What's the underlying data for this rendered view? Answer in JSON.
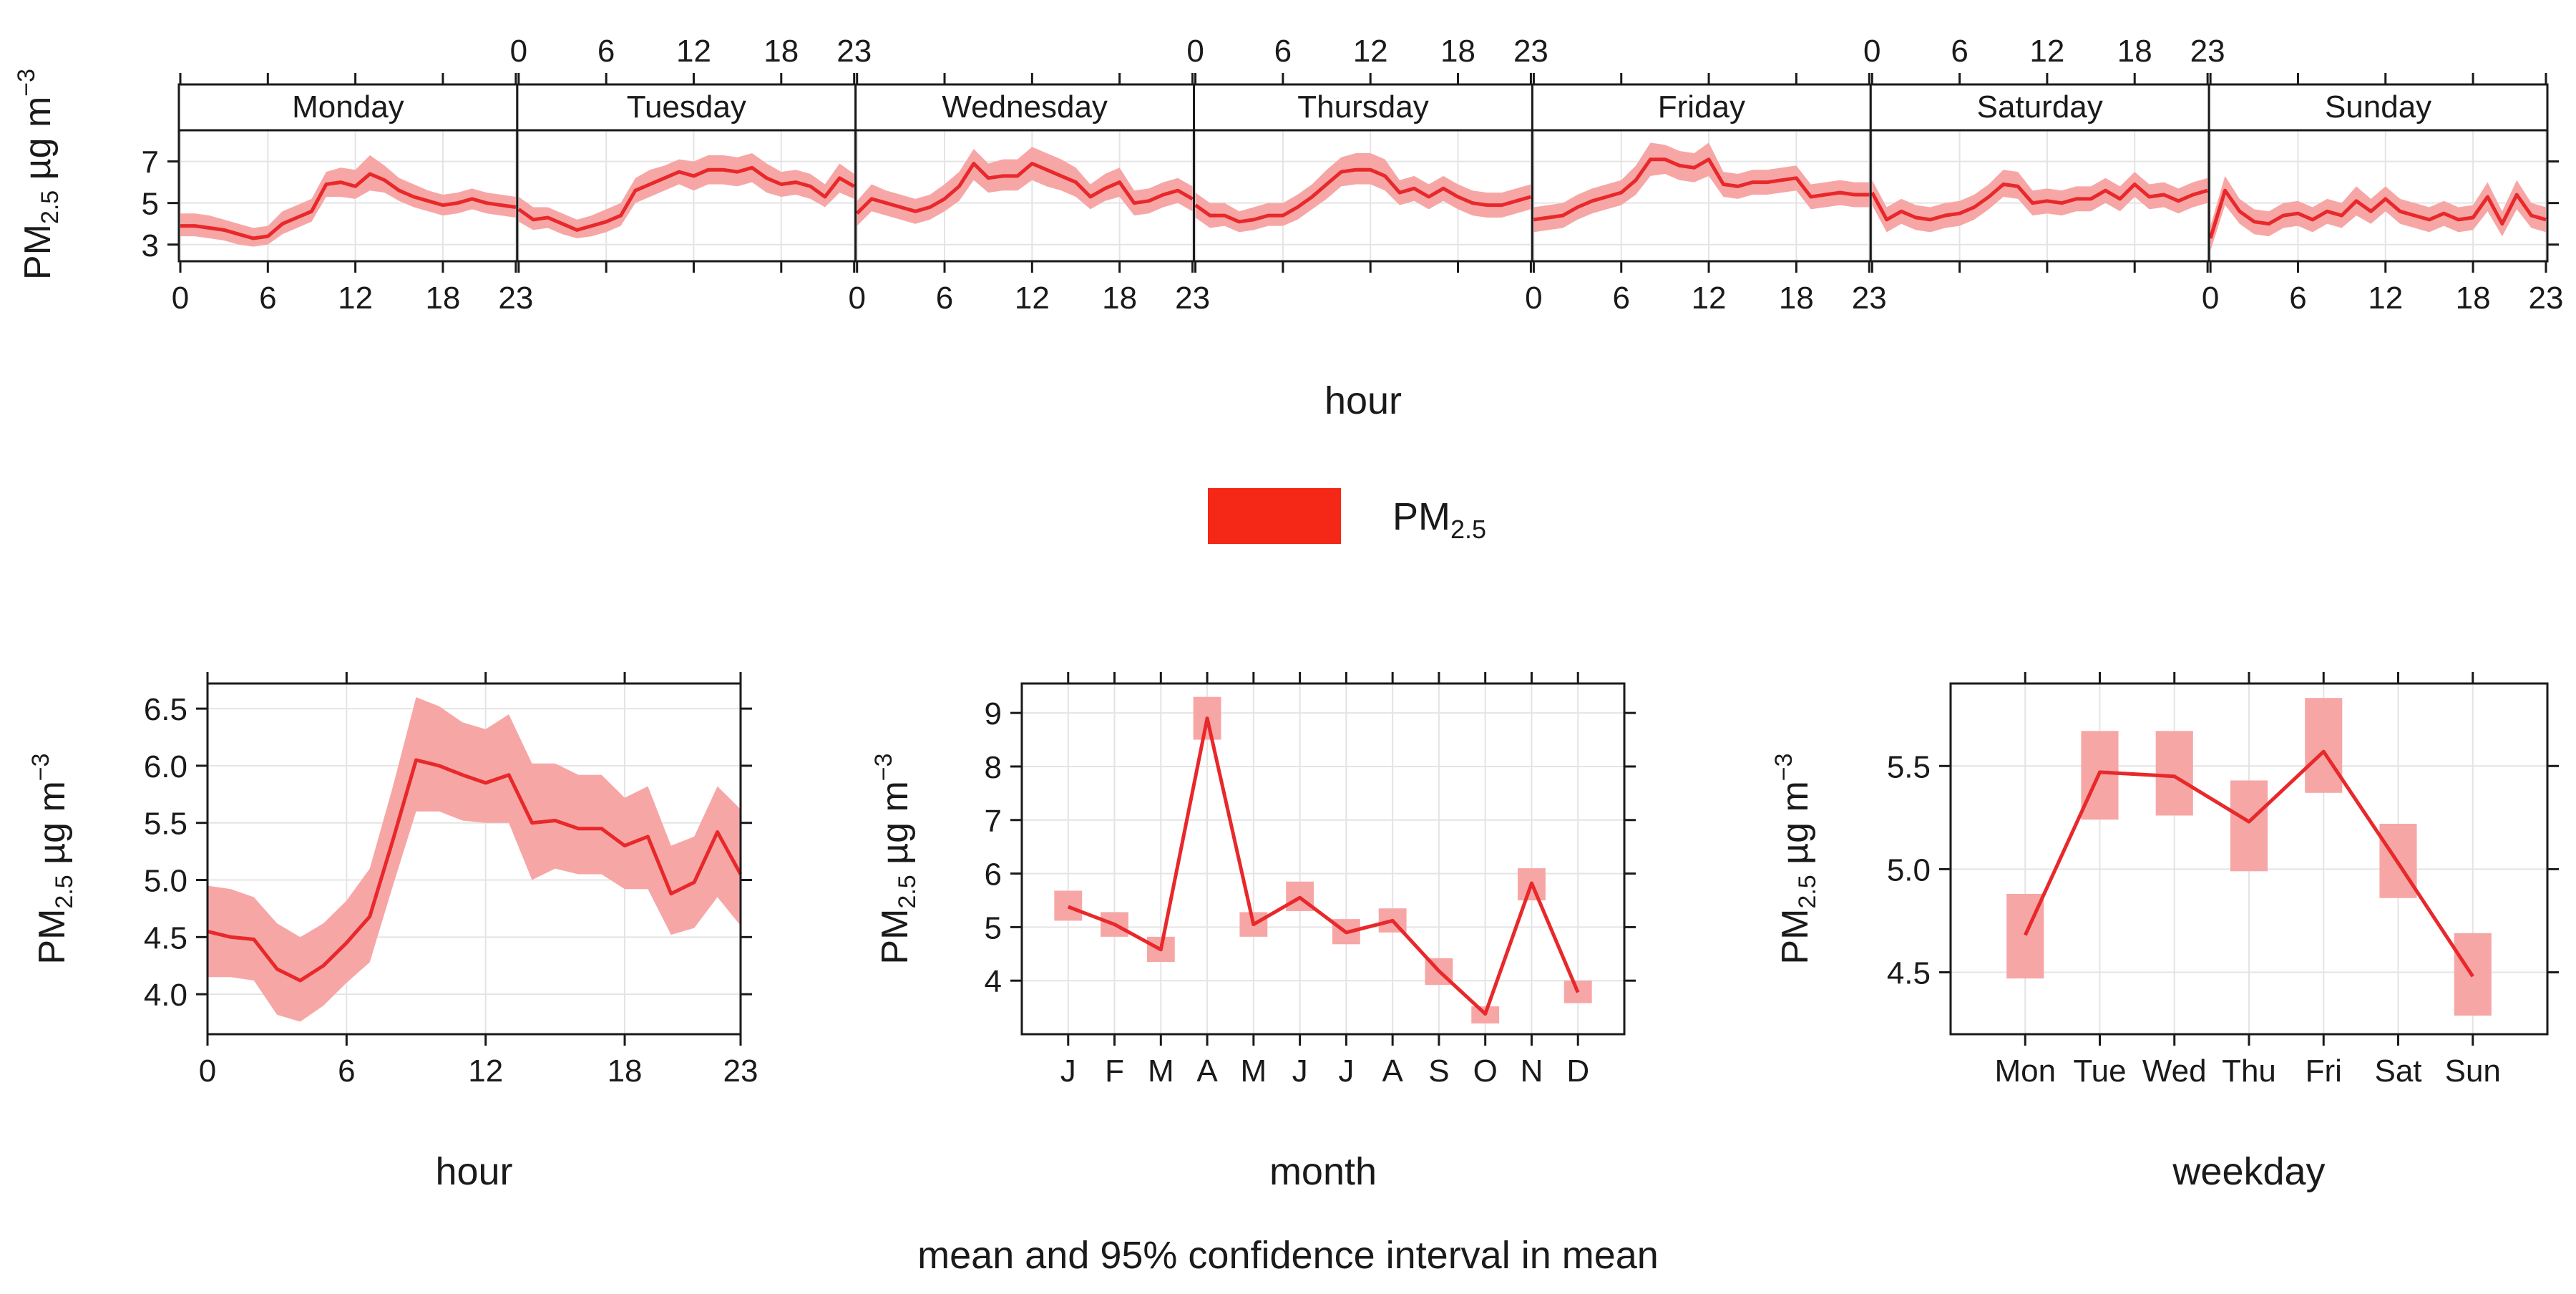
{
  "colors": {
    "line": "#e8282a",
    "band": "#f7a6a6",
    "legend_swatch": "#f52716",
    "grid": "#e4e4e4",
    "frame": "#1a1a1a",
    "strip_bg": "#ffffff"
  },
  "legend": {
    "label_main": "PM",
    "label_sub": "2.5"
  },
  "ylabel": {
    "main": "PM",
    "sub": "2.5",
    "unit": " µg m",
    "sup": "−3"
  },
  "caption": "mean and 95% confidence interval in mean",
  "chart_data": [
    {
      "id": "weekday_hour",
      "type": "line",
      "xlabel": "hour",
      "ylim": [
        2.2,
        8.5
      ],
      "yticks": [
        3,
        5,
        7
      ],
      "xtick_labels": [
        "0",
        "6",
        "12",
        "18",
        "23"
      ],
      "panels": [
        {
          "day": "Monday",
          "mean": [
            3.9,
            3.9,
            3.8,
            3.7,
            3.5,
            3.3,
            3.4,
            4.0,
            4.3,
            4.6,
            5.9,
            6.0,
            5.8,
            6.4,
            6.1,
            5.6,
            5.3,
            5.1,
            4.9,
            5.0,
            5.2,
            5.0,
            4.9,
            4.8
          ],
          "lower": [
            3.4,
            3.4,
            3.3,
            3.2,
            3.0,
            2.9,
            3.0,
            3.5,
            3.8,
            4.1,
            5.3,
            5.3,
            5.2,
            5.6,
            5.5,
            5.1,
            4.8,
            4.6,
            4.4,
            4.5,
            4.7,
            4.5,
            4.4,
            4.3
          ],
          "upper": [
            4.5,
            4.5,
            4.4,
            4.2,
            4.0,
            3.8,
            3.9,
            4.6,
            4.9,
            5.2,
            6.5,
            6.7,
            6.6,
            7.3,
            6.8,
            6.2,
            5.9,
            5.6,
            5.4,
            5.5,
            5.7,
            5.5,
            5.4,
            5.3
          ]
        },
        {
          "day": "Tuesday",
          "mean": [
            4.7,
            4.2,
            4.3,
            4.0,
            3.7,
            3.9,
            4.1,
            4.4,
            5.6,
            5.9,
            6.2,
            6.5,
            6.3,
            6.6,
            6.6,
            6.5,
            6.7,
            6.2,
            5.9,
            6.0,
            5.8,
            5.3,
            6.2,
            5.8
          ],
          "lower": [
            4.1,
            3.7,
            3.8,
            3.5,
            3.3,
            3.4,
            3.6,
            3.9,
            5.0,
            5.3,
            5.6,
            5.9,
            5.6,
            5.9,
            5.9,
            5.8,
            6.0,
            5.5,
            5.3,
            5.4,
            5.2,
            4.8,
            5.5,
            5.2
          ],
          "upper": [
            5.3,
            4.8,
            4.8,
            4.5,
            4.2,
            4.4,
            4.7,
            5.0,
            6.2,
            6.6,
            6.8,
            7.1,
            7.0,
            7.3,
            7.3,
            7.2,
            7.4,
            6.9,
            6.5,
            6.6,
            6.4,
            5.9,
            6.9,
            6.4
          ]
        },
        {
          "day": "Wednesday",
          "mean": [
            4.5,
            5.2,
            5.0,
            4.8,
            4.6,
            4.8,
            5.2,
            5.8,
            6.9,
            6.2,
            6.3,
            6.3,
            6.9,
            6.6,
            6.3,
            6.0,
            5.3,
            5.7,
            6.0,
            5.0,
            5.1,
            5.4,
            5.6,
            5.2
          ],
          "lower": [
            3.9,
            4.6,
            4.4,
            4.2,
            4.0,
            4.2,
            4.6,
            5.1,
            6.1,
            5.5,
            5.6,
            5.6,
            6.1,
            5.8,
            5.6,
            5.3,
            4.7,
            5.1,
            5.3,
            4.4,
            4.5,
            4.8,
            5.0,
            4.6
          ],
          "upper": [
            5.1,
            5.9,
            5.6,
            5.4,
            5.2,
            5.4,
            5.9,
            6.5,
            7.6,
            6.9,
            7.1,
            7.1,
            7.7,
            7.4,
            7.1,
            6.7,
            5.9,
            6.4,
            6.7,
            5.6,
            5.7,
            6.0,
            6.2,
            5.8
          ]
        },
        {
          "day": "Thursday",
          "mean": [
            4.9,
            4.4,
            4.4,
            4.1,
            4.2,
            4.4,
            4.4,
            4.8,
            5.3,
            5.9,
            6.5,
            6.6,
            6.6,
            6.3,
            5.5,
            5.7,
            5.3,
            5.7,
            5.3,
            5.0,
            4.9,
            4.9,
            5.1,
            5.3
          ],
          "lower": [
            4.3,
            3.8,
            3.9,
            3.6,
            3.7,
            3.9,
            3.9,
            4.2,
            4.7,
            5.2,
            5.8,
            5.9,
            5.9,
            5.6,
            4.9,
            5.1,
            4.7,
            5.1,
            4.7,
            4.4,
            4.3,
            4.3,
            4.5,
            4.7
          ],
          "upper": [
            5.5,
            5.0,
            5.0,
            4.6,
            4.8,
            5.0,
            5.0,
            5.4,
            5.9,
            6.6,
            7.2,
            7.4,
            7.4,
            7.1,
            6.1,
            6.3,
            5.9,
            6.3,
            5.9,
            5.6,
            5.5,
            5.5,
            5.7,
            5.9
          ]
        },
        {
          "day": "Friday",
          "mean": [
            4.2,
            4.3,
            4.4,
            4.8,
            5.1,
            5.3,
            5.5,
            6.1,
            7.1,
            7.1,
            6.8,
            6.7,
            7.1,
            5.9,
            5.8,
            6.0,
            6.0,
            6.1,
            6.2,
            5.3,
            5.4,
            5.5,
            5.4,
            5.4
          ],
          "lower": [
            3.6,
            3.7,
            3.8,
            4.2,
            4.5,
            4.7,
            4.9,
            5.4,
            6.3,
            6.4,
            6.1,
            6.0,
            6.3,
            5.3,
            5.2,
            5.4,
            5.4,
            5.5,
            5.6,
            4.7,
            4.8,
            4.9,
            4.8,
            4.8
          ],
          "upper": [
            4.8,
            4.9,
            5.0,
            5.4,
            5.7,
            5.9,
            6.1,
            6.8,
            7.9,
            7.8,
            7.5,
            7.4,
            7.9,
            6.5,
            6.4,
            6.6,
            6.6,
            6.7,
            6.8,
            5.9,
            6.0,
            6.1,
            6.0,
            6.0
          ]
        },
        {
          "day": "Saturday",
          "mean": [
            5.5,
            4.2,
            4.6,
            4.3,
            4.2,
            4.4,
            4.5,
            4.8,
            5.3,
            5.9,
            5.8,
            5.0,
            5.1,
            5.0,
            5.2,
            5.2,
            5.6,
            5.2,
            5.9,
            5.3,
            5.4,
            5.1,
            5.4,
            5.6
          ],
          "lower": [
            4.9,
            3.6,
            4.0,
            3.7,
            3.6,
            3.8,
            3.9,
            4.2,
            4.7,
            5.3,
            5.2,
            4.4,
            4.5,
            4.4,
            4.6,
            4.6,
            5.0,
            4.6,
            5.3,
            4.7,
            4.8,
            4.5,
            4.8,
            5.0
          ],
          "upper": [
            6.1,
            4.8,
            5.2,
            4.9,
            4.8,
            5.0,
            5.1,
            5.4,
            5.9,
            6.6,
            6.5,
            5.6,
            5.7,
            5.6,
            5.8,
            5.8,
            6.2,
            5.8,
            6.5,
            5.9,
            6.0,
            5.7,
            6.0,
            6.2
          ]
        },
        {
          "day": "Sunday",
          "mean": [
            3.3,
            5.6,
            4.6,
            4.1,
            4.0,
            4.4,
            4.5,
            4.2,
            4.6,
            4.4,
            5.1,
            4.6,
            5.2,
            4.6,
            4.4,
            4.2,
            4.5,
            4.2,
            4.3,
            5.3,
            4.0,
            5.4,
            4.4,
            4.2
          ],
          "lower": [
            2.7,
            4.9,
            4.0,
            3.5,
            3.4,
            3.8,
            3.9,
            3.6,
            4.0,
            3.8,
            4.4,
            4.0,
            4.6,
            4.0,
            3.8,
            3.6,
            3.9,
            3.6,
            3.7,
            4.6,
            3.4,
            4.7,
            3.8,
            3.6
          ],
          "upper": [
            3.9,
            6.3,
            5.2,
            4.7,
            4.6,
            5.0,
            5.1,
            4.8,
            5.2,
            5.0,
            5.8,
            5.2,
            5.8,
            5.2,
            5.0,
            4.8,
            5.1,
            4.8,
            4.9,
            6.0,
            4.6,
            6.1,
            5.0,
            4.8
          ]
        }
      ]
    },
    {
      "id": "hour",
      "type": "line",
      "xlabel": "hour",
      "ylim": [
        3.65,
        6.72
      ],
      "yticks": [
        4.0,
        4.5,
        5.0,
        5.5,
        6.0,
        6.5
      ],
      "ytick_labels": [
        "4.0",
        "4.5",
        "5.0",
        "5.5",
        "6.0",
        "6.5"
      ],
      "xlim": [
        0,
        23
      ],
      "xticks": [
        0,
        6,
        12,
        18,
        23
      ],
      "x": [
        0,
        1,
        2,
        3,
        4,
        5,
        6,
        7,
        8,
        9,
        10,
        11,
        12,
        13,
        14,
        15,
        16,
        17,
        18,
        19,
        20,
        21,
        22,
        23
      ],
      "mean": [
        4.55,
        4.5,
        4.48,
        4.22,
        4.12,
        4.25,
        4.45,
        4.68,
        5.35,
        6.05,
        6.0,
        5.92,
        5.85,
        5.92,
        5.5,
        5.52,
        5.45,
        5.45,
        5.3,
        5.38,
        4.88,
        4.98,
        5.42,
        5.05
      ],
      "lower": [
        4.15,
        4.15,
        4.12,
        3.82,
        3.76,
        3.9,
        4.1,
        4.28,
        4.95,
        5.6,
        5.6,
        5.52,
        5.5,
        5.5,
        5.0,
        5.1,
        5.05,
        5.05,
        4.92,
        4.92,
        4.52,
        4.58,
        4.85,
        4.6
      ],
      "upper": [
        4.95,
        4.92,
        4.85,
        4.62,
        4.5,
        4.62,
        4.82,
        5.1,
        5.82,
        6.6,
        6.52,
        6.38,
        6.32,
        6.45,
        6.02,
        6.02,
        5.92,
        5.92,
        5.72,
        5.82,
        5.3,
        5.38,
        5.82,
        5.62
      ]
    },
    {
      "id": "month",
      "type": "line",
      "xlabel": "month",
      "categories": [
        "J",
        "F",
        "M",
        "A",
        "M",
        "J",
        "J",
        "A",
        "S",
        "O",
        "N",
        "D"
      ],
      "ylim": [
        3.0,
        9.55
      ],
      "yticks": [
        4,
        5,
        6,
        7,
        8,
        9
      ],
      "ytick_labels": [
        "4",
        "5",
        "6",
        "7",
        "8",
        "9"
      ],
      "mean": [
        5.38,
        5.05,
        4.58,
        8.9,
        5.05,
        5.55,
        4.9,
        5.12,
        4.18,
        3.38,
        5.82,
        3.78
      ],
      "lower": [
        5.12,
        4.82,
        4.35,
        8.5,
        4.82,
        5.3,
        4.68,
        4.9,
        3.92,
        3.2,
        5.5,
        3.58
      ],
      "upper": [
        5.68,
        5.28,
        4.82,
        9.3,
        5.28,
        5.85,
        5.15,
        5.35,
        4.42,
        3.52,
        6.1,
        4.0
      ]
    },
    {
      "id": "weekday",
      "type": "line",
      "xlabel": "weekday",
      "categories": [
        "Mon",
        "Tue",
        "Wed",
        "Thu",
        "Fri",
        "Sat",
        "Sun"
      ],
      "ylim": [
        4.2,
        5.9
      ],
      "yticks": [
        4.5,
        5.0,
        5.5
      ],
      "ytick_labels": [
        "4.5",
        "5.0",
        "5.5"
      ],
      "mean": [
        4.68,
        5.47,
        5.45,
        5.23,
        5.57,
        5.03,
        4.48
      ],
      "lower": [
        4.47,
        5.24,
        5.26,
        4.99,
        5.37,
        4.86,
        4.29
      ],
      "upper": [
        4.88,
        5.67,
        5.67,
        5.43,
        5.83,
        5.22,
        4.69
      ]
    }
  ]
}
